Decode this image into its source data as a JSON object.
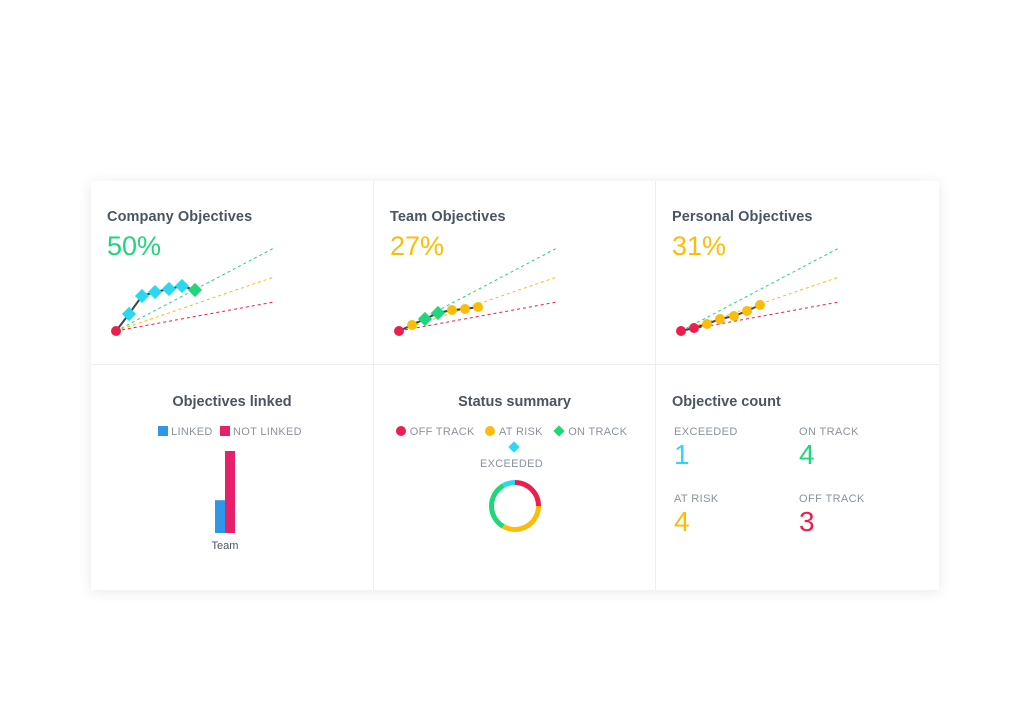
{
  "colors": {
    "off_track": "#ee1d4f",
    "at_risk": "#fbbd08",
    "on_track": "#20d67b",
    "exceeded": "#29d9f2",
    "linked": "#2f97e8",
    "not_linked": "#e6206b"
  },
  "objectives": [
    {
      "title": "Company Objectives",
      "percent": "50%",
      "color": "#20d67b"
    },
    {
      "title": "Team Objectives",
      "percent": "27%",
      "color": "#fbbd08"
    },
    {
      "title": "Personal Objectives",
      "percent": "31%",
      "color": "#fbbd08"
    }
  ],
  "objectives_linked": {
    "title": "Objectives linked",
    "legend": {
      "linked": "LINKED",
      "not_linked": "NOT LINKED"
    },
    "chart_data": {
      "type": "bar",
      "categories": [
        "Team"
      ],
      "series": [
        {
          "name": "LINKED",
          "values": [
            4
          ]
        },
        {
          "name": "NOT LINKED",
          "values": [
            10
          ]
        }
      ]
    }
  },
  "status_summary": {
    "title": "Status summary",
    "legend": {
      "off_track": "OFF TRACK",
      "at_risk": "AT RISK",
      "on_track": "ON TRACK",
      "exceeded": "EXCEEDED"
    },
    "chart_data": {
      "type": "pie",
      "categories": [
        "OFF TRACK",
        "AT RISK",
        "ON TRACK",
        "EXCEEDED"
      ],
      "values": [
        3,
        4,
        4,
        1
      ]
    }
  },
  "objective_count": {
    "title": "Objective count",
    "items": [
      {
        "label": "EXCEEDED",
        "value": "1",
        "color": "#29d9f2"
      },
      {
        "label": "ON TRACK",
        "value": "4",
        "color": "#20d67b"
      },
      {
        "label": "AT RISK",
        "value": "4",
        "color": "#fbbd08"
      },
      {
        "label": "OFF TRACK",
        "value": "3",
        "color": "#ee1d4f"
      }
    ]
  }
}
